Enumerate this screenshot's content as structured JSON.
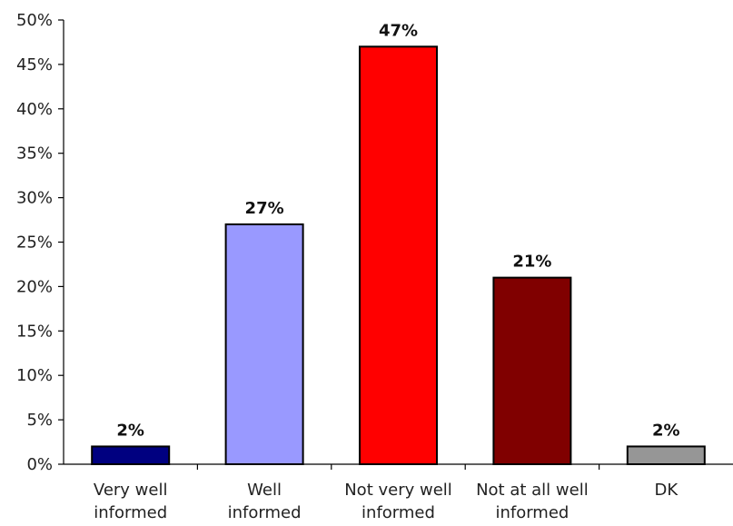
{
  "chart_data": {
    "type": "bar",
    "categories": [
      [
        "Very well",
        "informed"
      ],
      [
        "Well",
        "informed"
      ],
      [
        "Not very well",
        "informed"
      ],
      [
        "Not at all well",
        "informed"
      ],
      [
        "DK"
      ]
    ],
    "values": [
      2,
      27,
      47,
      21,
      2
    ],
    "data_labels": [
      "2%",
      "27%",
      "47%",
      "21%",
      "2%"
    ],
    "colors": [
      "#000080",
      "#9999ff",
      "#ff0000",
      "#800000",
      "#969696"
    ],
    "ylim": [
      0,
      50
    ],
    "ytick_values": [
      0,
      5,
      10,
      15,
      20,
      25,
      30,
      35,
      40,
      45,
      50
    ],
    "ytick_labels": [
      "0%",
      "5%",
      "10%",
      "15%",
      "20%",
      "25%",
      "30%",
      "35%",
      "40%",
      "45%",
      "50%"
    ],
    "title": "",
    "xlabel": "",
    "ylabel": "",
    "grid": false,
    "legend": "none"
  }
}
